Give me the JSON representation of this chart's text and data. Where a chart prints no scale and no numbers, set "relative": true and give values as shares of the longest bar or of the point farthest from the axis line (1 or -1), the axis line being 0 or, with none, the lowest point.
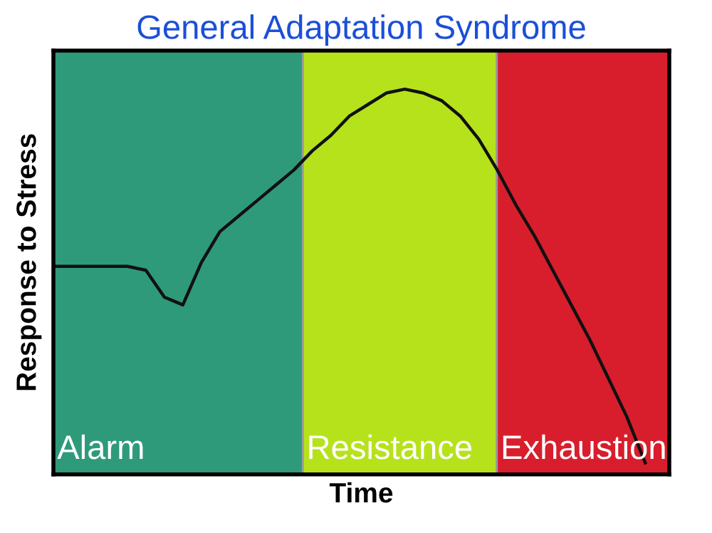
{
  "chart_data": {
    "type": "line",
    "title": "General Adaptation Syndrome",
    "xlabel": "Time",
    "ylabel": "Response to Stress",
    "relative": true,
    "annotations": [
      "Alarm",
      "Resistance",
      "Exhaustion"
    ],
    "legend": false,
    "marker": "none",
    "line_style": "solid",
    "categories": [
      null,
      null,
      null,
      null,
      null,
      null,
      null,
      null,
      null,
      null,
      null,
      null,
      null,
      null,
      null,
      null,
      null,
      null,
      null,
      null,
      null,
      null,
      null,
      null,
      null,
      null,
      null,
      null,
      null,
      null,
      null,
      null,
      null
    ],
    "series": [
      {
        "color": "#111111",
        "values": [
          0.54,
          0.54,
          0.54,
          0.54,
          0.54,
          0.53,
          0.46,
          0.44,
          0.55,
          0.63,
          0.67,
          0.71,
          0.75,
          0.79,
          0.84,
          0.88,
          0.93,
          0.96,
          0.99,
          1.0,
          0.99,
          0.97,
          0.93,
          0.87,
          0.79,
          0.7,
          0.62,
          0.53,
          0.44,
          0.35,
          0.25,
          0.15,
          0.03
        ]
      }
    ]
  }
}
